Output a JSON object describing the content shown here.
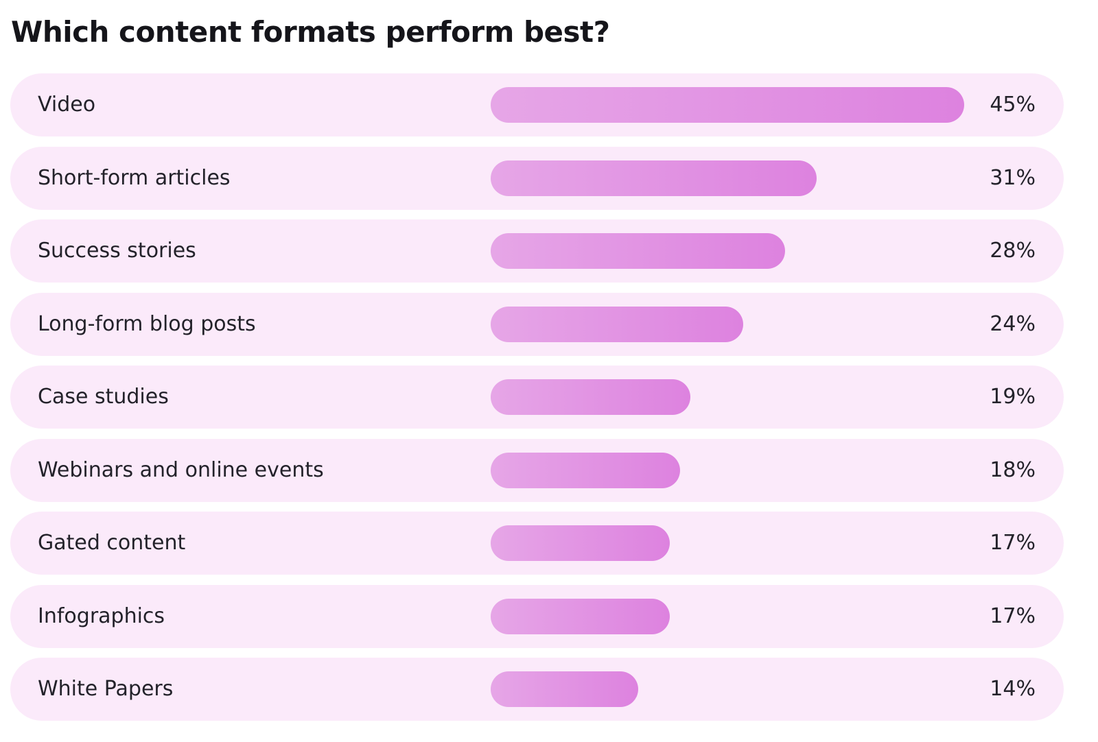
{
  "chart_data": {
    "type": "bar",
    "orientation": "horizontal",
    "title": "Which content formats perform best?",
    "categories": [
      "Video",
      "Short-form articles",
      "Success stories",
      "Long-form blog posts",
      "Case studies",
      "Webinars and online events",
      "Gated content",
      "Infographics",
      "White Papers"
    ],
    "values": [
      45,
      31,
      28,
      24,
      19,
      18,
      17,
      17,
      14
    ],
    "value_labels": [
      "45%",
      "31%",
      "28%",
      "24%",
      "19%",
      "18%",
      "17%",
      "17%",
      "14%"
    ],
    "xlim": [
      0,
      45
    ],
    "grid": false,
    "legend": "none",
    "colors": {
      "row_background": "#fbeafa",
      "bar_start": "#e6a6e7",
      "bar_end": "#dd82df",
      "text": "#23222a"
    }
  }
}
